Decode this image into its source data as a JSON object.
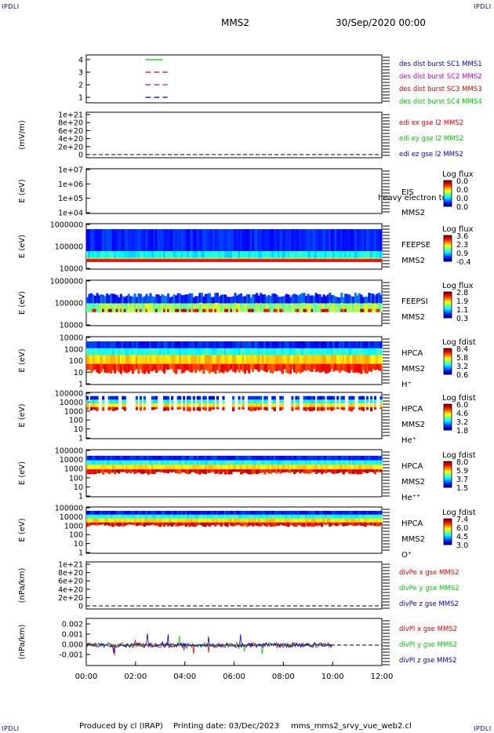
{
  "corners": {
    "tl": "IPDLI",
    "tr": "IPDLI",
    "bl": "IPDLI",
    "br": "IPDLI"
  },
  "header": {
    "spacecraft": "MMS2",
    "datetime": "30/Sep/2020 00:00"
  },
  "footer": {
    "produced_by": "Produced by cl (IRAP)",
    "printing_date": "Printing date: 03/Dec/2023",
    "filename": "mms_mms2_srvy_vue_web2.cl"
  },
  "colors": {
    "red": "#e00000",
    "green": "#00c800",
    "blue": "#0000d0",
    "magenta": "#d000d0",
    "cb_low": "#0000b4",
    "cb_high": "#c00000"
  },
  "chart_data": {
    "type": "multi-panel spectrogram / time series",
    "time_axis": {
      "ticks": [
        "00:00",
        "02:00",
        "04:00",
        "06:00",
        "08:00",
        "10:00",
        "12:00"
      ],
      "range_hours": [
        0,
        12
      ]
    },
    "panels": [
      {
        "id": "burst",
        "ylabel": "",
        "yticks": [
          "4",
          "3",
          "2",
          "1"
        ],
        "legend": [
          {
            "text": "des dist burst SC1 MMS1",
            "color": "#0000d0"
          },
          {
            "text": "des dist burst SC2 MMS2",
            "color": "#d000d0"
          },
          {
            "text": "des dist burst SC3 MMS3",
            "color": "#e00000"
          },
          {
            "text": "des dist burst SC4 MMS4",
            "color": "#00c800"
          }
        ]
      },
      {
        "id": "edi",
        "ylabel": "(mV/m)",
        "yticks": [
          "1e+21",
          "8e+20",
          "6e+20",
          "4e+20",
          "2e+20",
          "0"
        ],
        "legend": [
          {
            "text": "edi ex gse l2 MMS2",
            "color": "#e00000"
          },
          {
            "text": "edi ey gse l2 MMS2",
            "color": "#00c800"
          },
          {
            "text": "edi ez gse l2 MMS2",
            "color": "#0000d0"
          }
        ]
      },
      {
        "id": "eis",
        "ylabel": "E (eV)",
        "yticks": [
          "1e+07",
          "1e+06",
          "1e+05",
          "1e+04"
        ],
        "label_lines": [
          "EIS",
          "MMS2"
        ],
        "overlay_text": "heavy electron to",
        "cb_title": "Log flux",
        "cb_ticks": [
          "0.0",
          "0.0",
          "0.0",
          "0.0"
        ]
      },
      {
        "id": "feepse",
        "ylabel": "E (eV)",
        "yticks": [
          "1000000",
          "100000",
          "10000"
        ],
        "label_lines": [
          "FEEPSE",
          "MMS2"
        ],
        "cb_title": "Log flux",
        "cb_ticks": [
          "3.6",
          "2.3",
          "0.9",
          "-0.4"
        ]
      },
      {
        "id": "feepsi",
        "ylabel": "E (eV)",
        "yticks": [
          "1000000",
          "100000",
          "10000"
        ],
        "label_lines": [
          "FEEPSI",
          "MMS2"
        ],
        "cb_title": "Log flux",
        "cb_ticks": [
          "2.8",
          "1.9",
          "1.1",
          "0.3"
        ]
      },
      {
        "id": "hpca_h",
        "ylabel": "E (eV)",
        "yticks": [
          "10000",
          "1000",
          "100",
          "10",
          "1"
        ],
        "label_lines": [
          "HPCA",
          "MMS2",
          "H⁺"
        ],
        "cb_title": "Log fdist",
        "cb_ticks": [
          "8.4",
          "5.8",
          "3.2",
          "0.6"
        ]
      },
      {
        "id": "hpca_he",
        "ylabel": "E (eV)",
        "yticks": [
          "100000",
          "10000",
          "1000",
          "100",
          "10",
          "1"
        ],
        "label_lines": [
          "HPCA",
          "MMS2",
          "He⁺"
        ],
        "cb_title": "Log fdist",
        "cb_ticks": [
          "6.0",
          "4.6",
          "3.2",
          "1.8"
        ]
      },
      {
        "id": "hpca_hepp",
        "ylabel": "E (eV)",
        "yticks": [
          "100000",
          "10000",
          "1000",
          "100",
          "10",
          "1"
        ],
        "label_lines": [
          "HPCA",
          "MMS2",
          "He⁺⁺"
        ],
        "cb_title": "Log fdist",
        "cb_ticks": [
          "8.0",
          "5.9",
          "3.7",
          "1.5"
        ]
      },
      {
        "id": "hpca_o",
        "ylabel": "E (eV)",
        "yticks": [
          "100000",
          "10000",
          "1000",
          "100",
          "10",
          "1"
        ],
        "label_lines": [
          "HPCA",
          "MMS2",
          "O⁺"
        ],
        "cb_title": "Log fdist",
        "cb_ticks": [
          "7.4",
          "6.0",
          "4.5",
          "3.0"
        ]
      },
      {
        "id": "divpe",
        "ylabel": "(nPa/km)",
        "yticks": [
          "1e+21",
          "8e+20",
          "6e+20",
          "4e+20",
          "2e+20",
          "0"
        ],
        "legend": [
          {
            "text": "divPe x gse MMS2",
            "color": "#e00000"
          },
          {
            "text": "divPe y gse MMS2",
            "color": "#00c800"
          },
          {
            "text": "divPe z gse MMS2",
            "color": "#0000d0"
          }
        ]
      },
      {
        "id": "divpi",
        "ylabel": "(nPa/km)",
        "yticks": [
          "0.002",
          "0.001",
          "0.000",
          "-0.001"
        ],
        "legend": [
          {
            "text": "divPI x gse MMS2",
            "color": "#e00000"
          },
          {
            "text": "divPI y gse MMS2",
            "color": "#00c800"
          },
          {
            "text": "divPI z gse MMS2",
            "color": "#0000d0"
          }
        ]
      }
    ],
    "burst_markers": [
      {
        "sc": 4,
        "color": "#00c800",
        "t_start": 2.4,
        "t_end": 3.1
      },
      {
        "sc": 3,
        "color": "#e00000",
        "t_start": 2.4,
        "t_end": 3.3
      },
      {
        "sc": 2,
        "color": "#d000d0",
        "t_start": 2.4,
        "t_end": 3.3
      },
      {
        "sc": 1,
        "color": "#0000d0",
        "t_start": 2.4,
        "t_end": 3.3
      }
    ],
    "divpi_end_hours": 10.0
  }
}
